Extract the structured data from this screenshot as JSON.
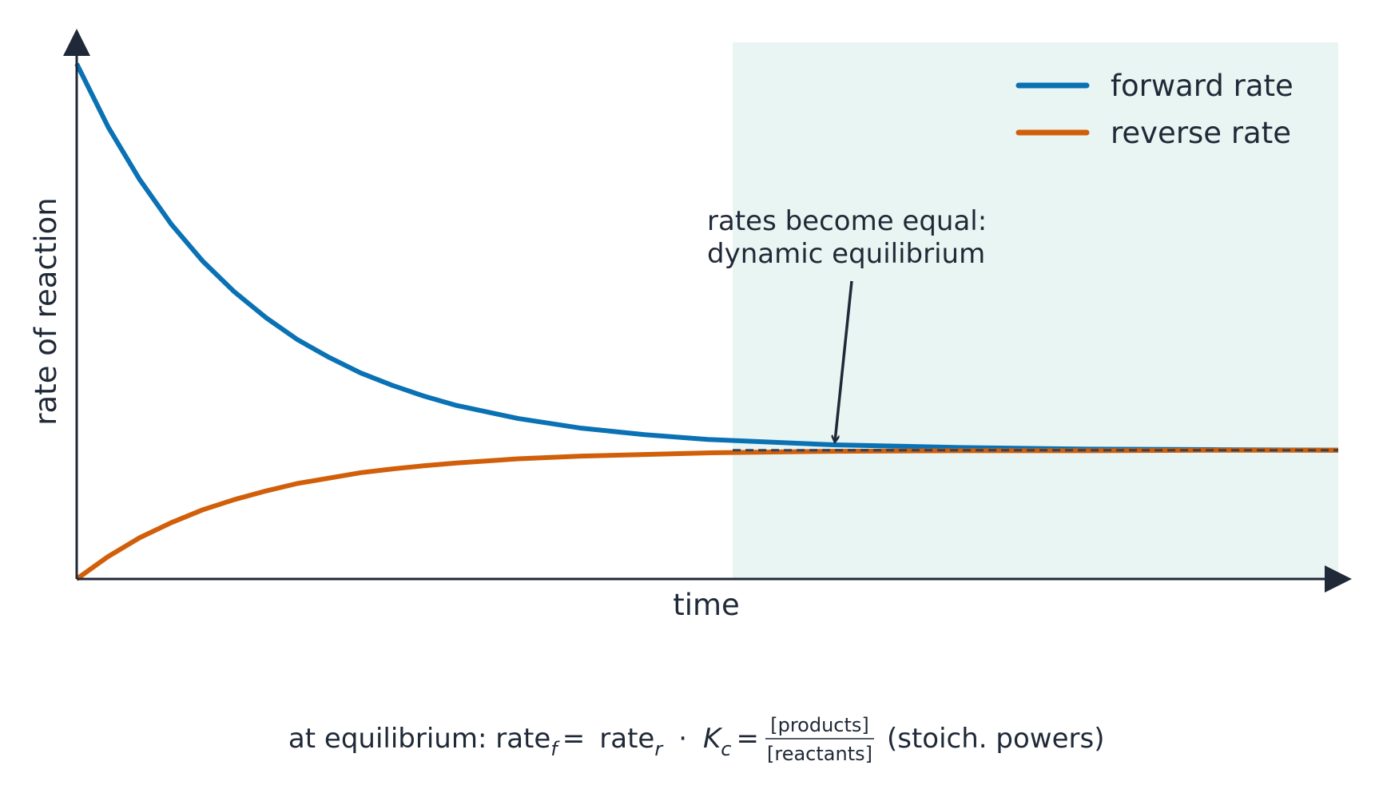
{
  "chart_data": {
    "type": "line",
    "x_label": "time",
    "y_label": "rate of reaction",
    "x": [
      0,
      0.25,
      0.5,
      0.75,
      1,
      1.25,
      1.5,
      1.75,
      2,
      2.25,
      2.5,
      2.75,
      3,
      3.5,
      4,
      4.5,
      5,
      6,
      7,
      8,
      9,
      10
    ],
    "series": [
      {
        "name": "forward rate",
        "color": "#0a72b4",
        "values": [
          0.96,
          0.842,
          0.744,
          0.661,
          0.592,
          0.535,
          0.487,
          0.446,
          0.413,
          0.384,
          0.361,
          0.341,
          0.324,
          0.299,
          0.281,
          0.269,
          0.26,
          0.25,
          0.245,
          0.242,
          0.241,
          0.24
        ]
      },
      {
        "name": "reverse rate",
        "color": "#d15f0a",
        "values": [
          0,
          0.042,
          0.077,
          0.105,
          0.129,
          0.148,
          0.164,
          0.178,
          0.188,
          0.198,
          0.205,
          0.211,
          0.216,
          0.224,
          0.229,
          0.232,
          0.235,
          0.238,
          0.239,
          0.239,
          0.24,
          0.24
        ]
      }
    ],
    "xlim": [
      0,
      10
    ],
    "ylim": [
      0,
      1
    ],
    "equilibrium_level": 0.24,
    "shade_from": 5.2,
    "legend": "upper right",
    "annotation": [
      "rates become equal:",
      "dynamic equilibrium"
    ],
    "formula": {
      "lead": "at equilibrium: rate",
      "sub_f": "f",
      "eq1": "=",
      "rate2": "rate",
      "sub_r": "r",
      "dot": "·",
      "k": "K",
      "sub_c": "c",
      "eq2": "=",
      "numerator": "[products]",
      "denominator": "[reactants]",
      "tail": "(stoich. powers)"
    }
  }
}
